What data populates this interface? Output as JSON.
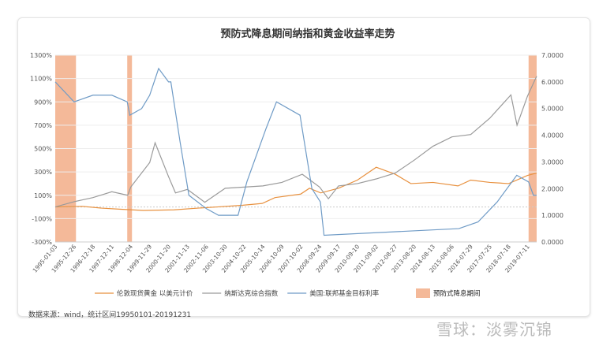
{
  "chart_data": {
    "type": "line",
    "title": "预防式降息期间纳指和黄金收益率走势",
    "y_left": {
      "min": -300,
      "max": 1300,
      "step": 200,
      "ticks": [
        "1300%",
        "1100%",
        "900%",
        "700%",
        "500%",
        "300%",
        "100%",
        "-100%",
        "-300%"
      ]
    },
    "y_right": {
      "min": 0,
      "max": 7,
      "step": 1,
      "ticks": [
        "7.0000",
        "6.0000",
        "5.0000",
        "4.0000",
        "3.0000",
        "2.0000",
        "1.0000",
        "0.0000"
      ]
    },
    "x_range": [
      "1995-01-03",
      "2019-12-31"
    ],
    "x_ticks": [
      "1995-01-03",
      "1995-12-26",
      "1996-12-18",
      "1997-12-11",
      "1998-12-04",
      "1999-11-29",
      "2000-11-20",
      "2001-11-13",
      "2002-11-06",
      "2003-10-30",
      "2004-10-22",
      "2005-10-14",
      "2006-10-09",
      "2007-10-02",
      "2008-09-24",
      "2009-09-17",
      "2010-09-10",
      "2011-09-02",
      "2012-08-27",
      "2013-08-20",
      "2014-08-13",
      "2015-08-06",
      "2016-07-29",
      "2017-07-25",
      "2018-07-18",
      "2019-07-11"
    ],
    "shaded": {
      "name": "预防式降息期间",
      "color": "#f4b999",
      "periods": [
        [
          "1995-01-03",
          "1996-01-31"
        ],
        [
          "1998-09-29",
          "1998-11-17"
        ],
        [
          "2019-07-31",
          "2019-12-31"
        ]
      ]
    },
    "series": [
      {
        "name": "伦敦现货黄金 以美元计价",
        "axis": "left",
        "color": "#e8913f",
        "points": [
          [
            "1995-01-03",
            0
          ],
          [
            "1996-06-01",
            5
          ],
          [
            "1997-06-01",
            -10
          ],
          [
            "1998-06-01",
            -20
          ],
          [
            "1999-08-01",
            -30
          ],
          [
            "2001-03-01",
            -25
          ],
          [
            "2002-06-01",
            -10
          ],
          [
            "2003-06-01",
            0
          ],
          [
            "2004-10-01",
            15
          ],
          [
            "2005-10-01",
            30
          ],
          [
            "2006-06-01",
            80
          ],
          [
            "2007-10-01",
            110
          ],
          [
            "2008-03-15",
            160
          ],
          [
            "2008-10-15",
            120
          ],
          [
            "2009-09-17",
            160
          ],
          [
            "2010-09-10",
            230
          ],
          [
            "2011-09-02",
            340
          ],
          [
            "2012-08-27",
            280
          ],
          [
            "2013-06-20",
            200
          ],
          [
            "2014-08-13",
            210
          ],
          [
            "2015-12-01",
            180
          ],
          [
            "2016-07-29",
            230
          ],
          [
            "2017-07-25",
            210
          ],
          [
            "2018-07-18",
            200
          ],
          [
            "2019-07-11",
            270
          ],
          [
            "2019-12-31",
            290
          ]
        ]
      },
      {
        "name": "纳斯达克综合指数",
        "axis": "left",
        "color": "#9a9a9a",
        "points": [
          [
            "1995-01-03",
            0
          ],
          [
            "1995-12-26",
            45
          ],
          [
            "1996-12-18",
            80
          ],
          [
            "1997-12-11",
            130
          ],
          [
            "1998-10-08",
            100
          ],
          [
            "1998-12-04",
            170
          ],
          [
            "1999-11-29",
            380
          ],
          [
            "2000-03-10",
            550
          ],
          [
            "2000-11-20",
            260
          ],
          [
            "2001-04-01",
            120
          ],
          [
            "2001-11-13",
            150
          ],
          [
            "2002-10-09",
            40
          ],
          [
            "2003-10-30",
            160
          ],
          [
            "2004-10-22",
            170
          ],
          [
            "2005-10-14",
            180
          ],
          [
            "2006-10-09",
            210
          ],
          [
            "2007-10-31",
            280
          ],
          [
            "2008-09-24",
            170
          ],
          [
            "2009-03-09",
            70
          ],
          [
            "2009-09-17",
            180
          ],
          [
            "2010-09-10",
            200
          ],
          [
            "2011-09-02",
            240
          ],
          [
            "2012-08-27",
            290
          ],
          [
            "2013-08-20",
            400
          ],
          [
            "2014-08-13",
            520
          ],
          [
            "2015-08-06",
            600
          ],
          [
            "2016-07-29",
            620
          ],
          [
            "2017-07-25",
            760
          ],
          [
            "2018-08-30",
            960
          ],
          [
            "2018-12-24",
            700
          ],
          [
            "2019-07-11",
            950
          ],
          [
            "2019-12-31",
            1120
          ]
        ]
      },
      {
        "name": "美国:联邦基金目标利率",
        "axis": "right",
        "color": "#6f9bc6",
        "points": [
          [
            "1995-01-03",
            6.0
          ],
          [
            "1995-12-26",
            5.25
          ],
          [
            "1996-12-18",
            5.5
          ],
          [
            "1997-12-11",
            5.5
          ],
          [
            "1998-09-29",
            5.25
          ],
          [
            "1998-11-17",
            4.75
          ],
          [
            "1999-06-30",
            5.0
          ],
          [
            "1999-11-29",
            5.5
          ],
          [
            "2000-05-16",
            6.5
          ],
          [
            "2000-11-20",
            6.0
          ],
          [
            "2001-01-03",
            6.0
          ],
          [
            "2001-06-27",
            3.75
          ],
          [
            "2001-12-11",
            1.75
          ],
          [
            "2002-11-06",
            1.25
          ],
          [
            "2003-06-25",
            1.0
          ],
          [
            "2004-06-30",
            1.0
          ],
          [
            "2004-12-14",
            2.25
          ],
          [
            "2005-12-13",
            4.25
          ],
          [
            "2006-06-29",
            5.25
          ],
          [
            "2007-09-18",
            4.75
          ],
          [
            "2008-04-30",
            2.0
          ],
          [
            "2008-10-08",
            1.5
          ],
          [
            "2008-12-16",
            0.25
          ],
          [
            "2015-12-16",
            0.5
          ],
          [
            "2016-12-14",
            0.75
          ],
          [
            "2017-12-13",
            1.5
          ],
          [
            "2018-12-19",
            2.5
          ],
          [
            "2019-07-31",
            2.25
          ],
          [
            "2019-10-30",
            1.75
          ],
          [
            "2019-12-31",
            1.75
          ]
        ]
      }
    ]
  },
  "source": "数据来源：wind，统计区间19950101-20191231",
  "watermark": "雪球：淡雾沉锦"
}
